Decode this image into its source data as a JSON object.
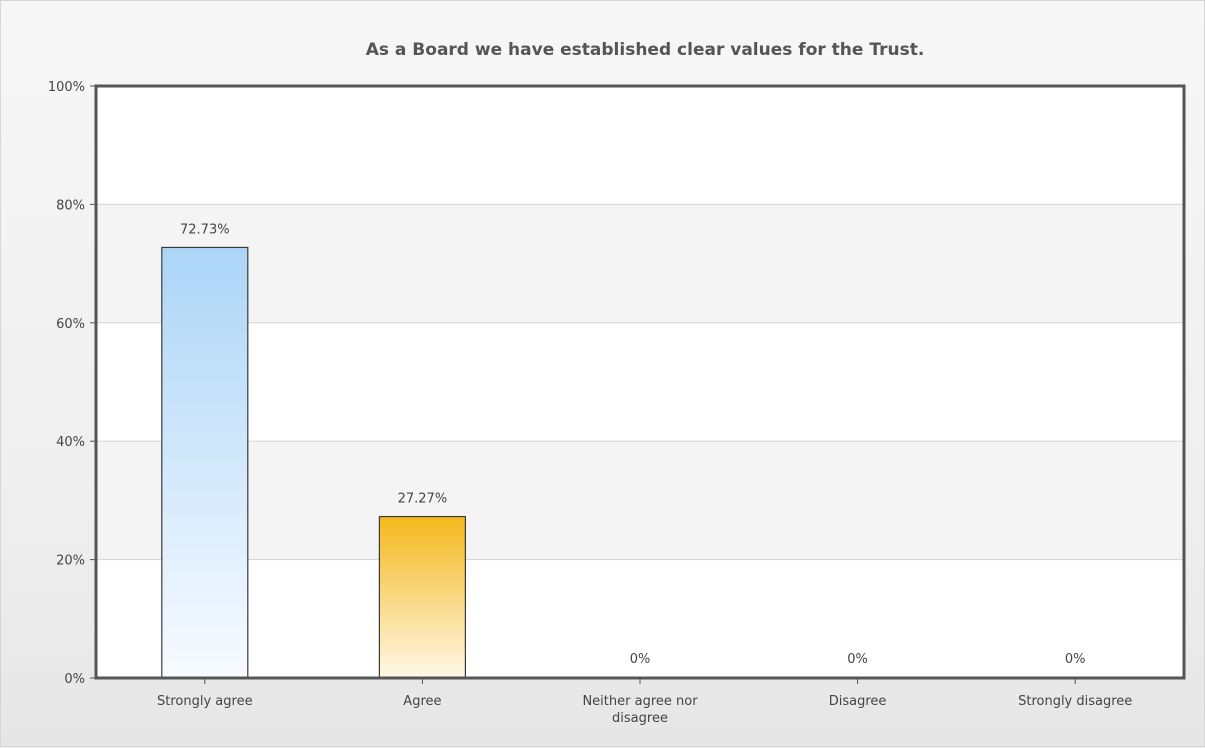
{
  "chart_data": {
    "type": "bar",
    "title": "As a Board we have established clear values for the Trust.",
    "xlabel": "",
    "ylabel": "",
    "ylim": [
      0,
      100
    ],
    "yticks": [
      0,
      20,
      40,
      60,
      80,
      100
    ],
    "ytick_labels": [
      "0%",
      "20%",
      "40%",
      "60%",
      "80%",
      "100%"
    ],
    "categories": [
      [
        "Strongly agree"
      ],
      [
        "Agree"
      ],
      [
        "Neither agree nor",
        "disagree"
      ],
      [
        "Disagree"
      ],
      [
        "Strongly disagree"
      ]
    ],
    "values": [
      72.73,
      27.27,
      0,
      0,
      0
    ],
    "data_labels": [
      "72.73%",
      "27.27%",
      "0%",
      "0%",
      "0%"
    ],
    "bar_gradients": [
      {
        "top": "#acd5f7",
        "bottom": "#f8fbff"
      },
      {
        "top": "#f4b81c",
        "bottom": "#fff8e8"
      }
    ],
    "grid": true,
    "legend": "none"
  }
}
